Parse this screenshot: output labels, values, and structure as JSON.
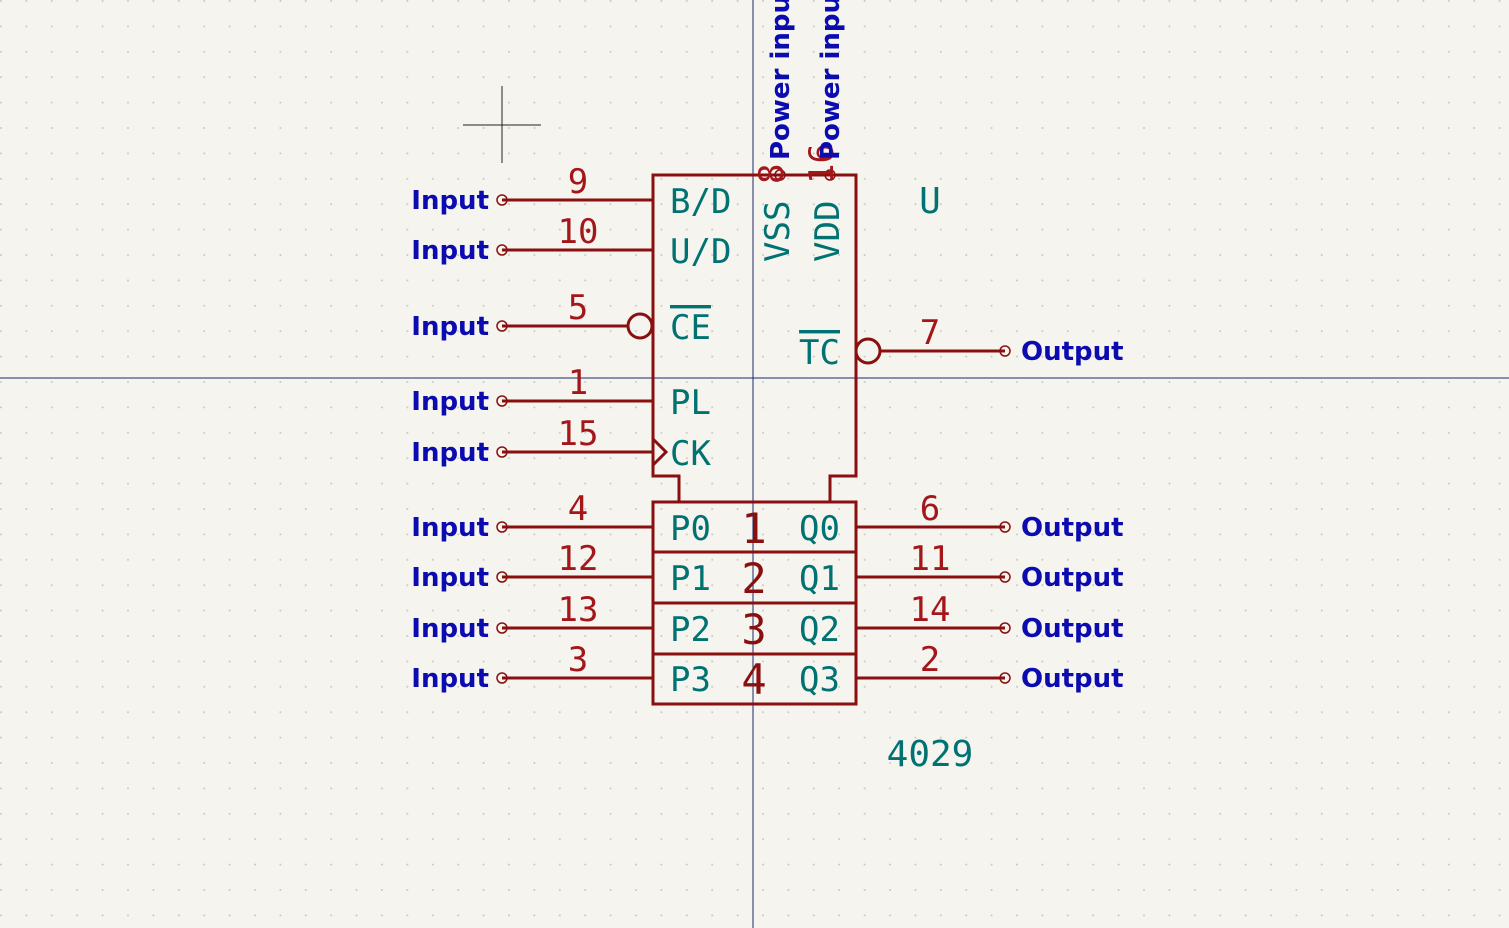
{
  "symbol": {
    "reference": "U",
    "value": "4029",
    "colors": {
      "background": "#f5f4ef",
      "body": "#8a1010",
      "pin_number": "#a4161a",
      "pin_name": "#007272",
      "electrical_type": "#0b0bb0",
      "grid": "#c8c8c0",
      "axis": "#1a2a6a"
    },
    "left_pins": [
      {
        "number": "9",
        "name": "B/D",
        "type": "Input",
        "style": "line"
      },
      {
        "number": "10",
        "name": "U/D",
        "type": "Input",
        "style": "line"
      },
      {
        "number": "5",
        "name": "CE",
        "type": "Input",
        "style": "inverted"
      },
      {
        "number": "1",
        "name": "PL",
        "type": "Input",
        "style": "line"
      },
      {
        "number": "15",
        "name": "CK",
        "type": "Input",
        "style": "clock"
      }
    ],
    "right_pins": [
      {
        "number": "7",
        "name": "TC",
        "type": "Output",
        "style": "inverted"
      }
    ],
    "power_pins": [
      {
        "number": "8",
        "name": "VSS",
        "type": "Power input"
      },
      {
        "number": "16",
        "name": "VDD",
        "type": "Power input"
      }
    ],
    "bit_rows": [
      {
        "unit": "1",
        "in_number": "4",
        "in_name": "P0",
        "in_type": "Input",
        "out_number": "6",
        "out_name": "Q0",
        "out_type": "Output"
      },
      {
        "unit": "2",
        "in_number": "12",
        "in_name": "P1",
        "in_type": "Input",
        "out_number": "11",
        "out_name": "Q1",
        "out_type": "Output"
      },
      {
        "unit": "3",
        "in_number": "13",
        "in_name": "P2",
        "in_type": "Input",
        "out_number": "14",
        "out_name": "Q2",
        "out_type": "Output"
      },
      {
        "unit": "4",
        "in_number": "3",
        "in_name": "P3",
        "in_type": "Input",
        "out_number": "2",
        "out_name": "Q3",
        "out_type": "Output"
      }
    ]
  }
}
